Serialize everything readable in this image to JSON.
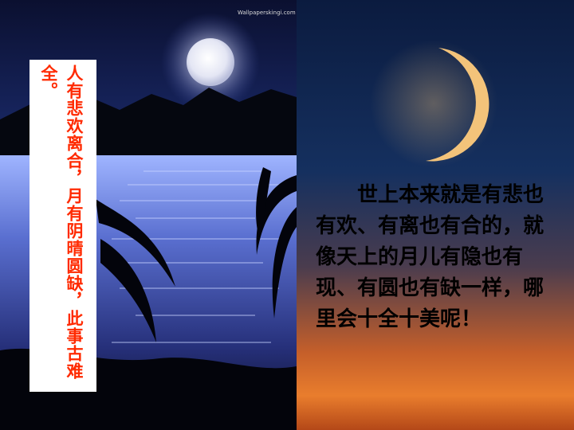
{
  "slide": {
    "watermark": "Wallpaperskingi.com",
    "quote": "人有悲欢离合，月有阴晴圆缺，此事古难全。",
    "paragraph": "世上本来就是有悲也有欢、有离也有合的，就像天上的月儿有隐也有现、有圆也有缺一样，哪里会十全十美呢！",
    "colors": {
      "quote_text": "#ff2a00",
      "quote_card": "#ffffff",
      "paragraph_text": "#000000",
      "moon_glow": "#e8eaff",
      "crescent": "#f3c37a",
      "sunset": "#e97d2d"
    }
  }
}
